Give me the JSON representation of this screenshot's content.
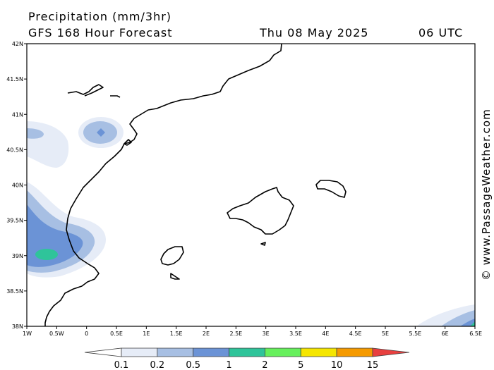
{
  "header": {
    "title": "Precipitation (mm/3hr)",
    "subtitle": "GFS 168 Hour Forecast",
    "date": "Thu 08 May 2025",
    "time": "06 UTC"
  },
  "credit": "© www.PassageWeather.com",
  "map": {
    "lon_range": [
      -1,
      6.5
    ],
    "lat_range": [
      38,
      42
    ],
    "lat_ticks": [
      "42N",
      "41.5N",
      "41N",
      "40.5N",
      "40N",
      "39.5N",
      "39N",
      "38.5N",
      "38N"
    ],
    "lon_ticks": [
      "1W",
      "0.5W",
      "0",
      "0.5E",
      "1E",
      "1.5E",
      "2E",
      "2.5E",
      "3E",
      "3.5E",
      "4E",
      "4.5E",
      "5E",
      "5.5E",
      "6E",
      "6.5E"
    ]
  },
  "legend": {
    "labels": [
      "0.1",
      "0.2",
      "0.5",
      "1",
      "2",
      "5",
      "10",
      "15"
    ],
    "colors": [
      "#ffffff",
      "#e6ecf7",
      "#a7bfe3",
      "#6b93d6",
      "#2fc49a",
      "#66f05c",
      "#f5e600",
      "#f59a00",
      "#e8403f"
    ]
  }
}
